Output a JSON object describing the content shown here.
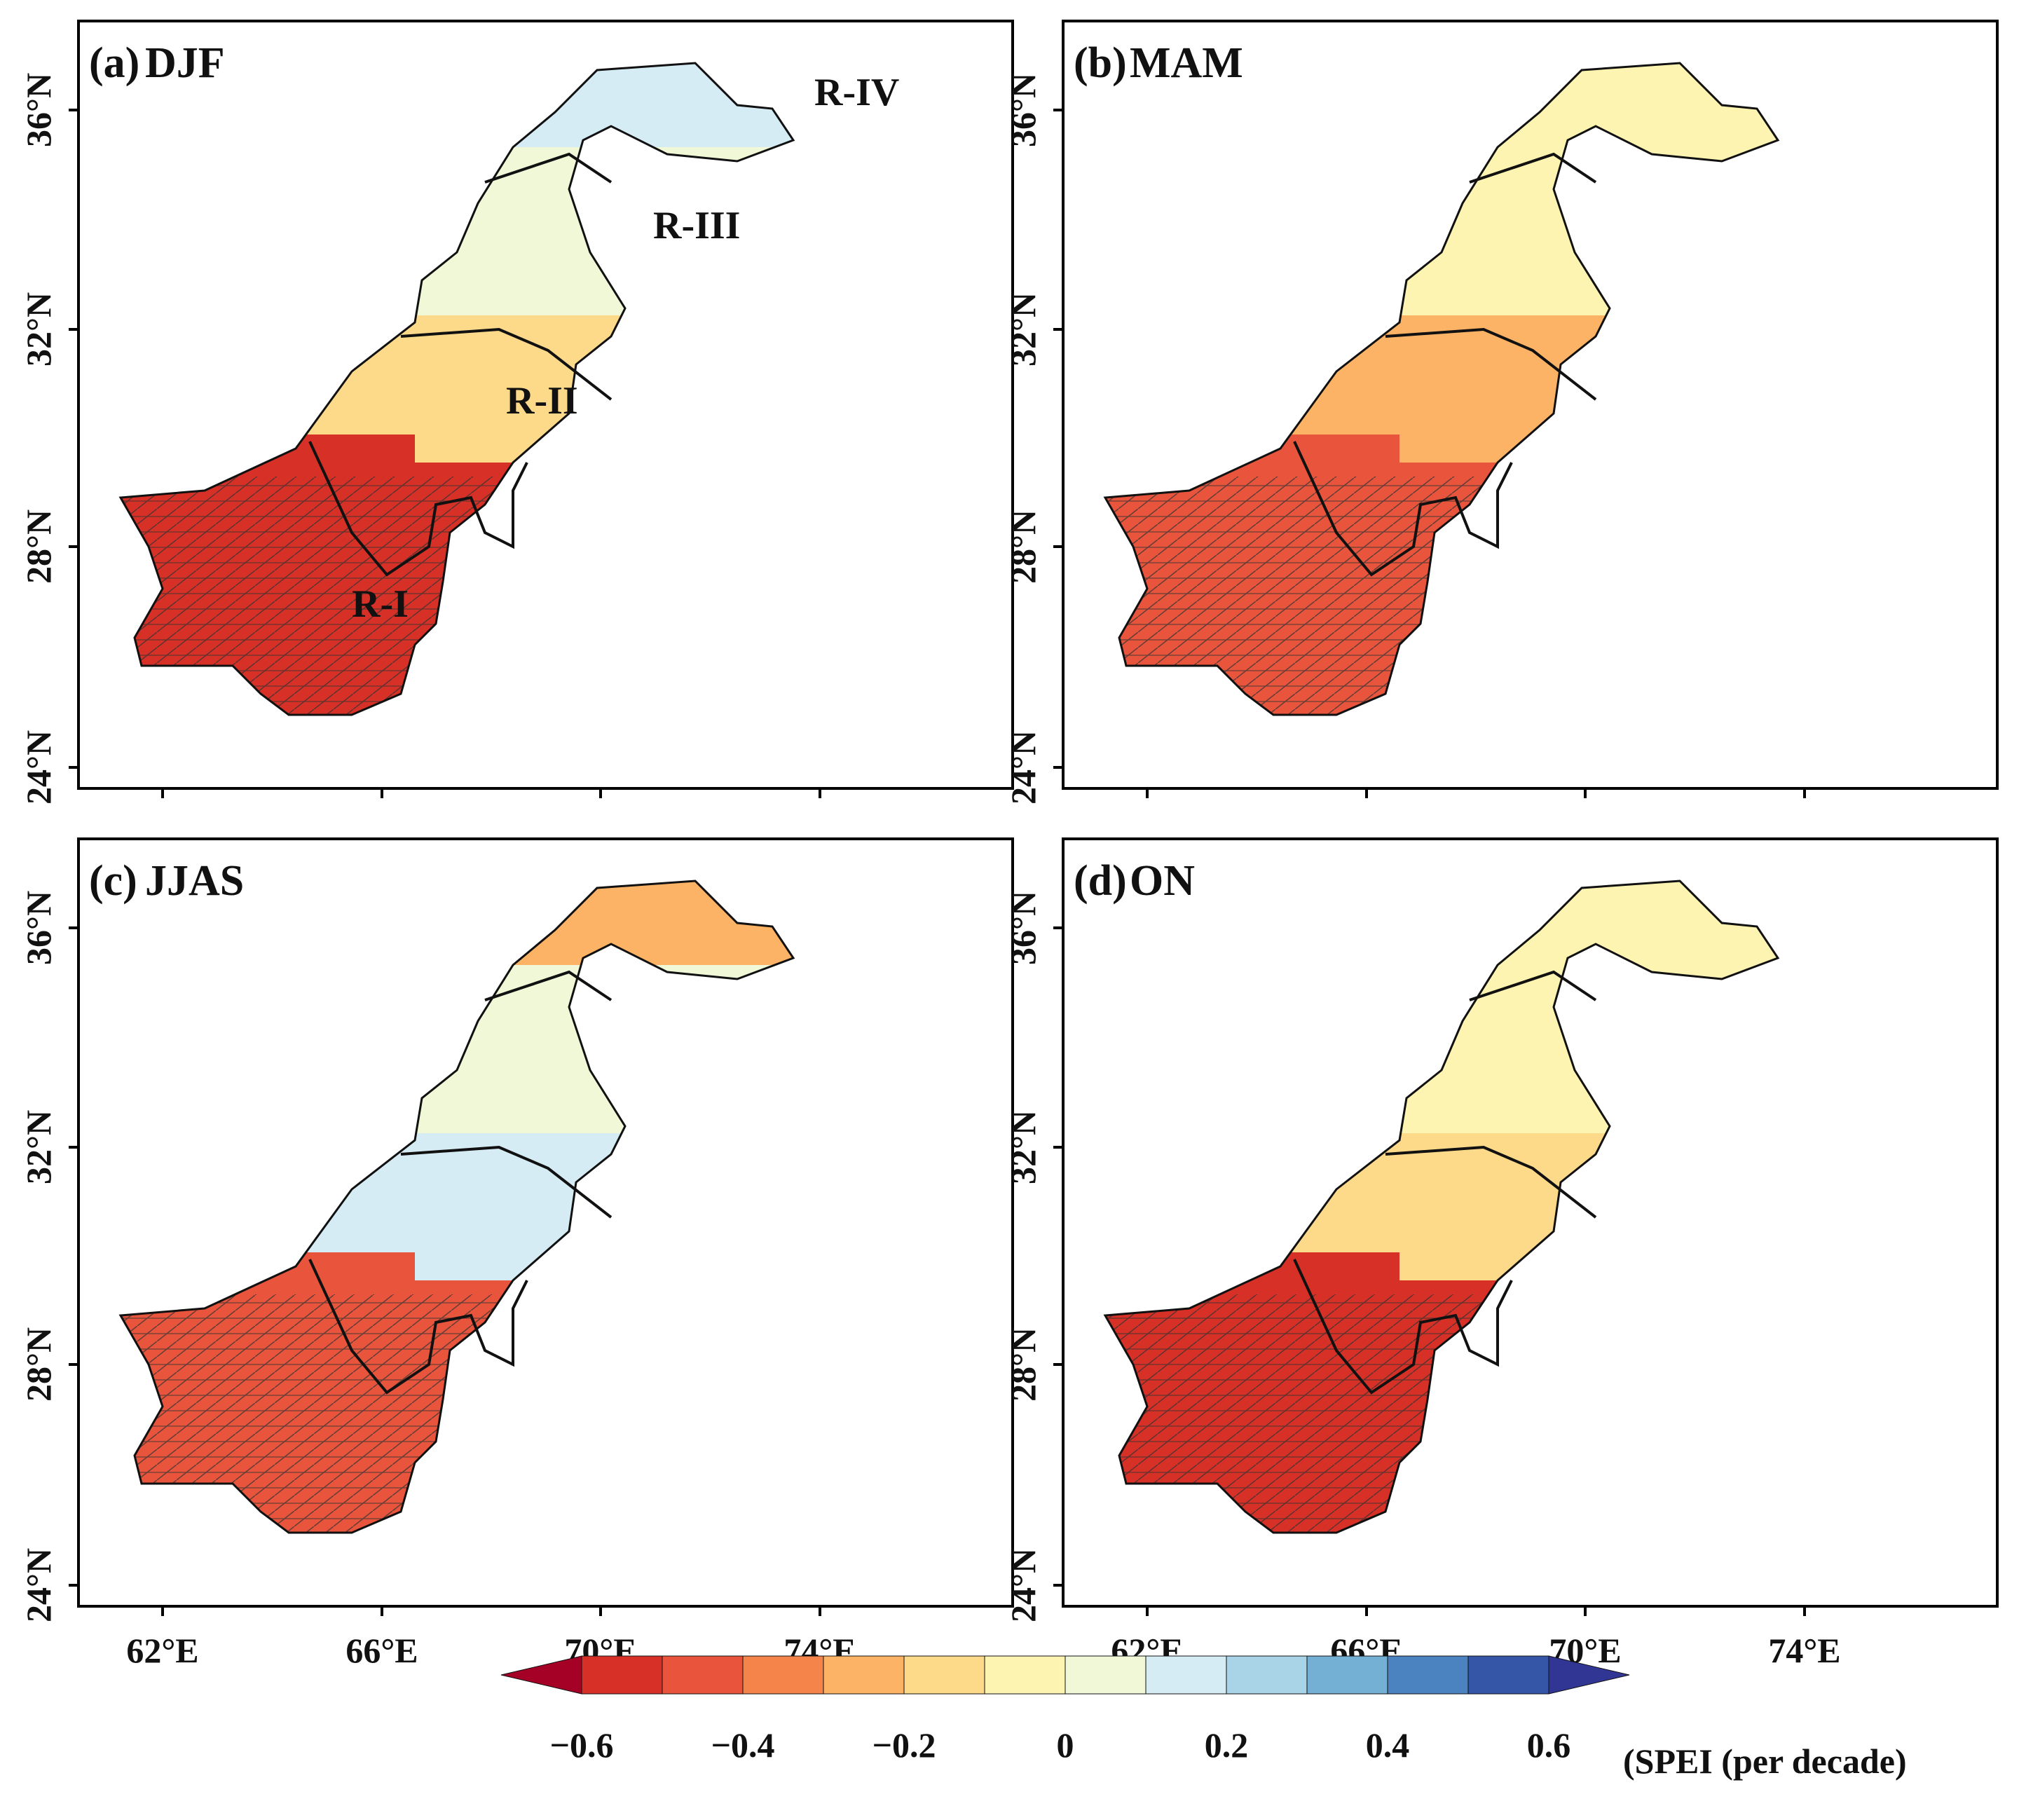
{
  "figure": {
    "panels": [
      {
        "id": "a",
        "label": "(a)",
        "season": "DJF",
        "regions": [
          "R-I",
          "R-II",
          "R-III",
          "R-IV"
        ],
        "region_trends": [
          -0.5,
          -0.15,
          0.05,
          0.15
        ]
      },
      {
        "id": "b",
        "label": "(b)",
        "season": "MAM",
        "regions": [],
        "region_trends": [
          -0.45,
          -0.2,
          -0.05,
          -0.05
        ]
      },
      {
        "id": "c",
        "label": "(c)",
        "season": "JJAS",
        "regions": [],
        "region_trends": [
          -0.4,
          0.15,
          0.05,
          -0.2
        ]
      },
      {
        "id": "d",
        "label": "(d)",
        "season": "ON",
        "regions": [],
        "region_trends": [
          -0.55,
          -0.15,
          -0.05,
          -0.05
        ]
      }
    ],
    "lat_ticks": [
      "24°N",
      "28°N",
      "32°N",
      "36°N"
    ],
    "lon_ticks": [
      "62°E",
      "66°E",
      "70°E",
      "74°E"
    ],
    "colorbar": {
      "colors": [
        "#a50026",
        "#d73027",
        "#e8553c",
        "#f4844a",
        "#fdb366",
        "#fdd98a",
        "#fef4b2",
        "#f0f8d8",
        "#d6ecf4",
        "#a9d4e8",
        "#74afd4",
        "#4a83c0",
        "#3555a6",
        "#313695"
      ],
      "tick_labels": [
        "−0.6",
        "−0.4",
        "−0.2",
        "0",
        "0.2",
        "0.4",
        "0.6"
      ],
      "tick_values": [
        -0.6,
        -0.4,
        -0.2,
        0,
        0.2,
        0.4,
        0.6
      ],
      "unit_label": "(SPEI (per decade)"
    }
  }
}
